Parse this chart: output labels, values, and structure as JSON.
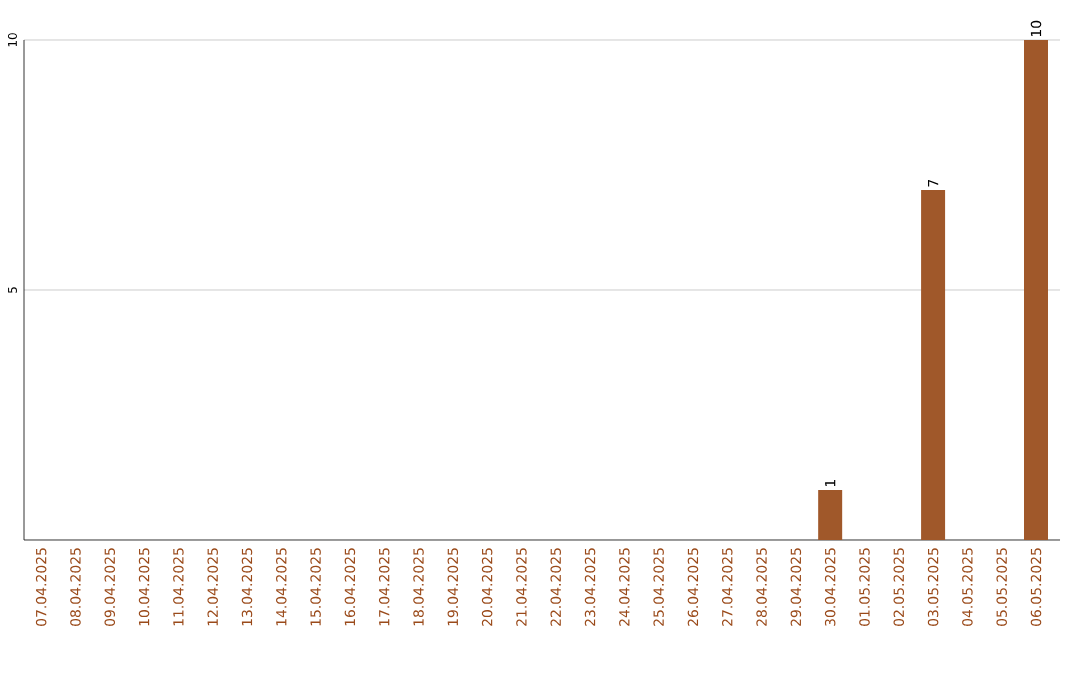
{
  "chart_data": {
    "type": "bar",
    "categories": [
      "07.04.2025",
      "08.04.2025",
      "09.04.2025",
      "10.04.2025",
      "11.04.2025",
      "12.04.2025",
      "13.04.2025",
      "14.04.2025",
      "15.04.2025",
      "16.04.2025",
      "17.04.2025",
      "18.04.2025",
      "19.04.2025",
      "20.04.2025",
      "21.04.2025",
      "22.04.2025",
      "23.04.2025",
      "24.04.2025",
      "25.04.2025",
      "26.04.2025",
      "27.04.2025",
      "28.04.2025",
      "29.04.2025",
      "30.04.2025",
      "01.05.2025",
      "02.05.2025",
      "03.05.2025",
      "04.05.2025",
      "05.05.2025",
      "06.05.2025"
    ],
    "values": [
      0,
      0,
      0,
      0,
      0,
      0,
      0,
      0,
      0,
      0,
      0,
      0,
      0,
      0,
      0,
      0,
      0,
      0,
      0,
      0,
      0,
      0,
      0,
      1,
      0,
      0,
      7,
      0,
      0,
      10
    ],
    "value_labels": [
      null,
      null,
      null,
      null,
      null,
      null,
      null,
      null,
      null,
      null,
      null,
      null,
      null,
      null,
      null,
      null,
      null,
      null,
      null,
      null,
      null,
      null,
      null,
      "1",
      null,
      null,
      "7",
      null,
      null,
      "10"
    ],
    "color": "#a0582a",
    "ylim": [
      0,
      10
    ],
    "yticks": [
      5,
      10
    ],
    "grid": "y"
  }
}
